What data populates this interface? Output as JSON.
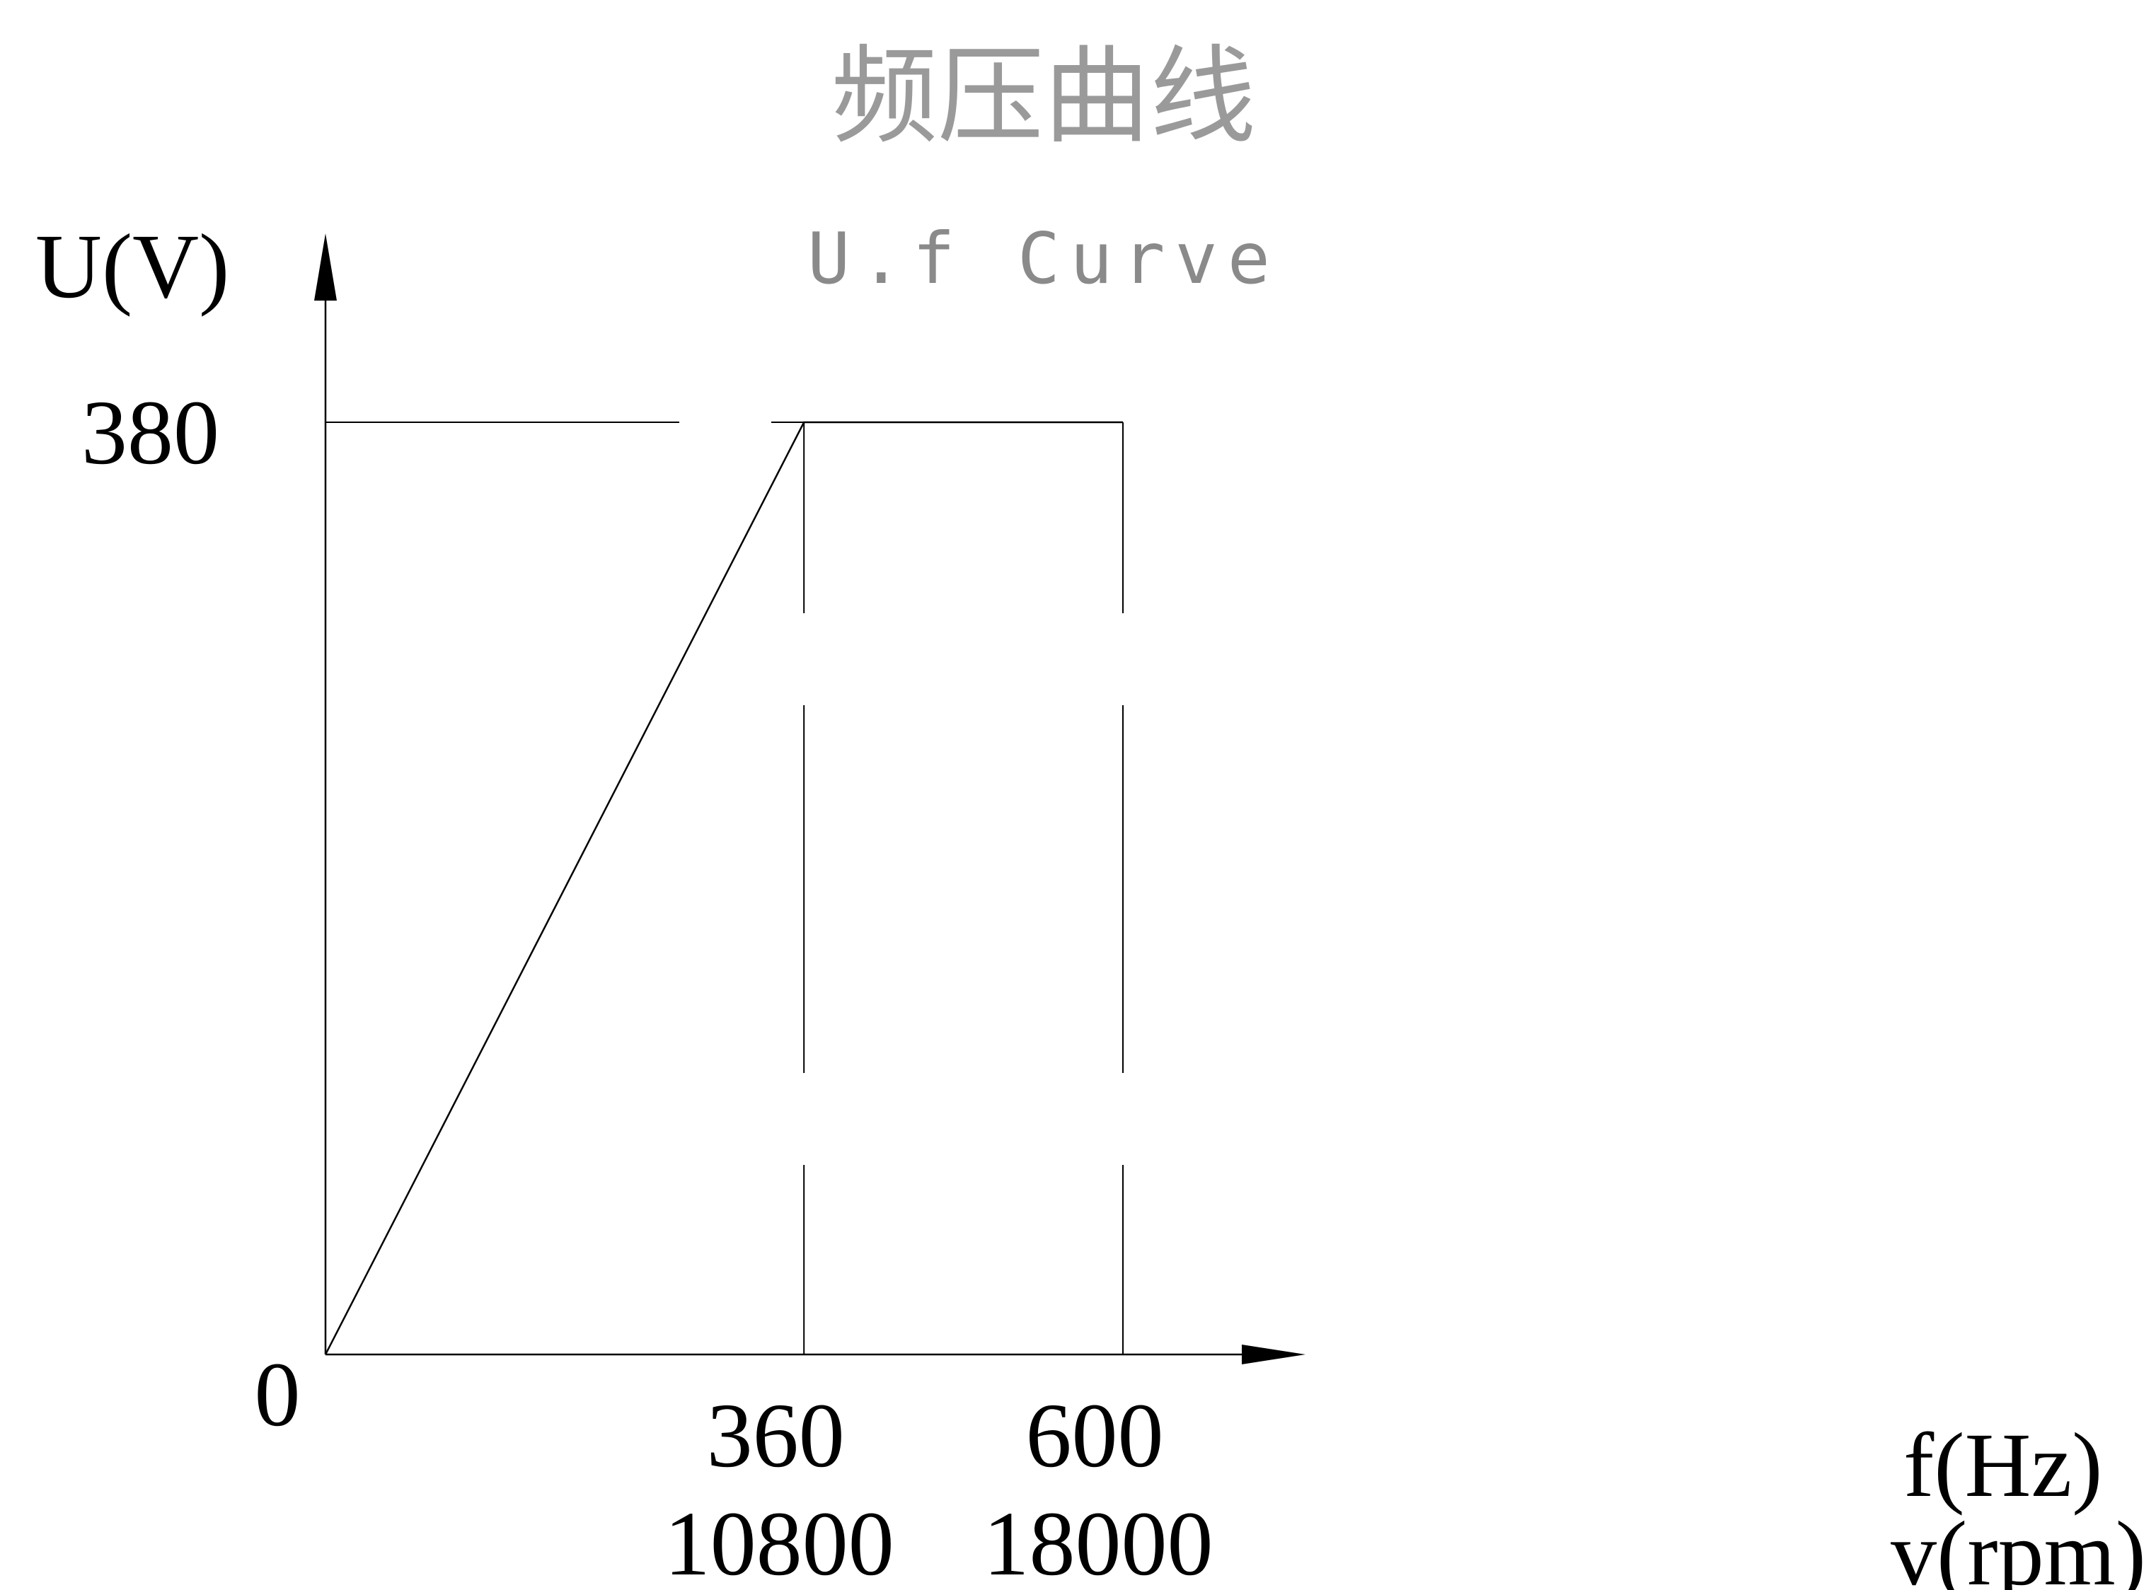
{
  "chart_data": {
    "type": "line",
    "title": "频压曲线",
    "subtitle": "U.f Curve",
    "ylabel": "U(V)",
    "xlabel": "f(Hz)",
    "xlabel_secondary": "v(rpm)",
    "origin_label": "0",
    "xlim": [
      0,
      740
    ],
    "ylim": [
      0,
      380
    ],
    "x_ticks": [
      {
        "value": 360,
        "label": "360",
        "label_secondary": "10800"
      },
      {
        "value": 600,
        "label": "600",
        "label_secondary": "18000"
      }
    ],
    "y_ticks": [
      {
        "value": 380,
        "label": "380"
      }
    ],
    "series": [
      {
        "points": [
          {
            "x": 0,
            "y": 0
          },
          {
            "x": 360,
            "y": 380
          },
          {
            "x": 600,
            "y": 380
          }
        ]
      }
    ],
    "grid": false,
    "legend": "none"
  }
}
